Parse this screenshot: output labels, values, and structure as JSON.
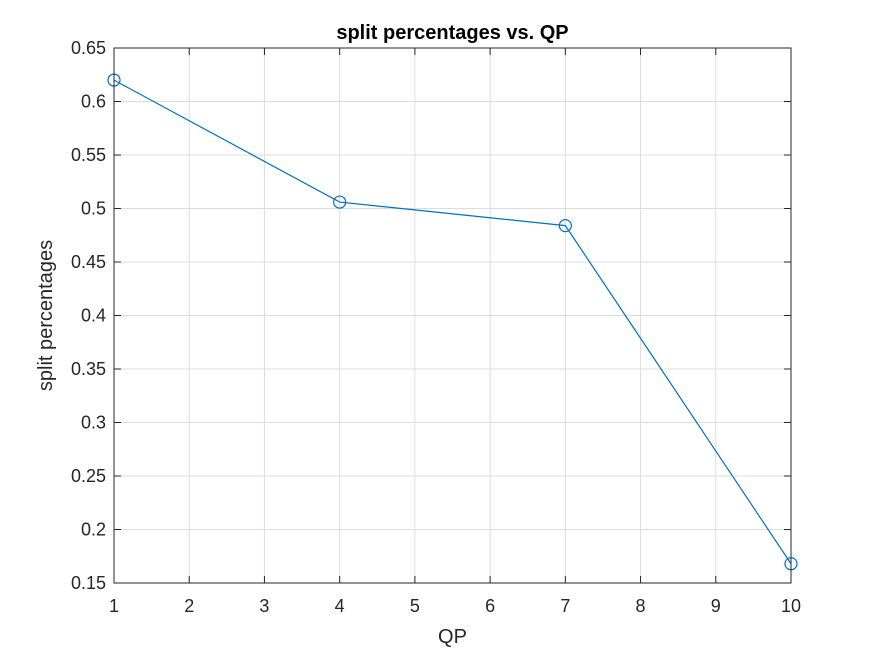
{
  "chart_data": {
    "type": "line",
    "title": "split percentages vs. QP",
    "xlabel": "QP",
    "ylabel": "split percentages",
    "xlim": [
      1,
      10
    ],
    "ylim": [
      0.15,
      0.65
    ],
    "xticks": [
      "1",
      "2",
      "3",
      "4",
      "5",
      "6",
      "7",
      "8",
      "9",
      "10"
    ],
    "yticks": [
      "0.15",
      "0.2",
      "0.25",
      "0.3",
      "0.35",
      "0.4",
      "0.45",
      "0.5",
      "0.55",
      "0.6",
      "0.65"
    ],
    "grid": true,
    "marker": "circle",
    "series_color": "#0072BD",
    "series": [
      {
        "x": [
          1,
          4,
          7,
          10
        ],
        "y": [
          0.62,
          0.506,
          0.484,
          0.168
        ]
      }
    ]
  }
}
